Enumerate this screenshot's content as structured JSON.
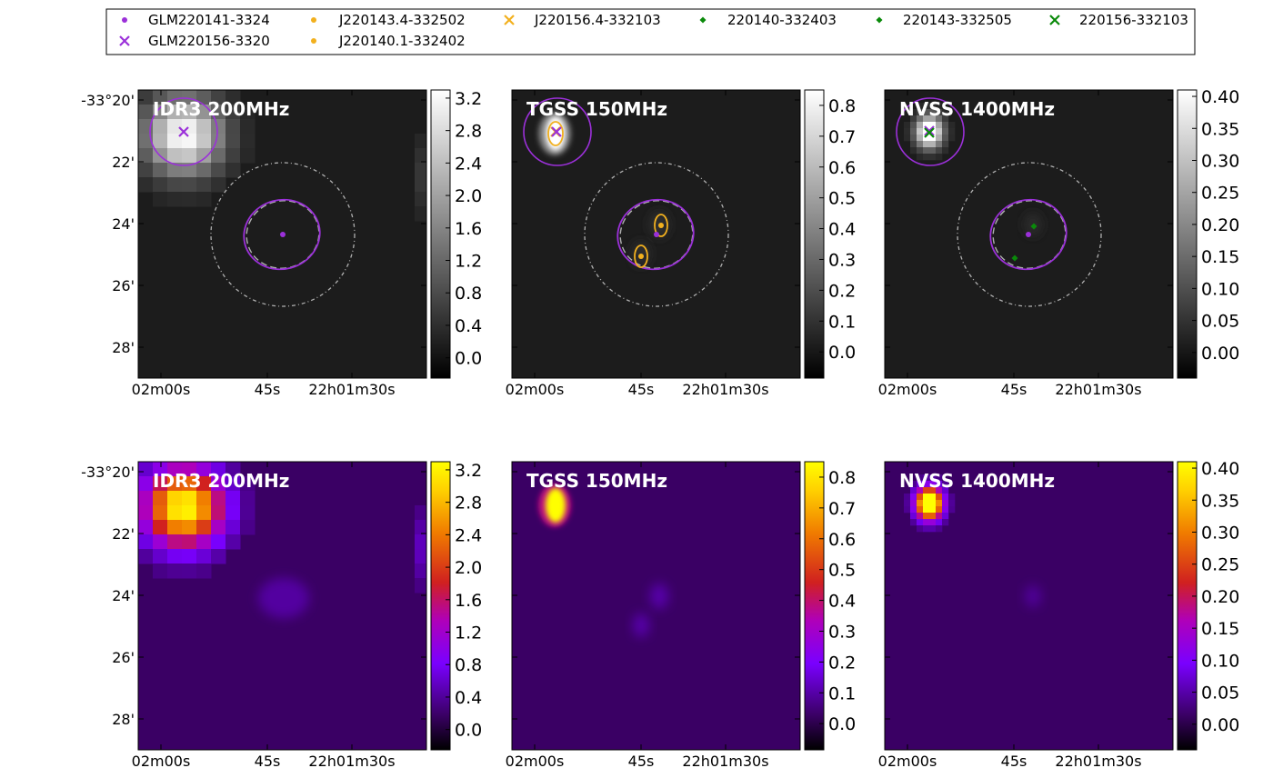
{
  "legend": {
    "entries": [
      {
        "label": "GLM220141-3324",
        "marker": "dot",
        "color": "#9b30d9"
      },
      {
        "label": "GLM220156-3320",
        "marker": "x",
        "color": "#9b30d9"
      },
      {
        "label": "J220143.4-332502",
        "marker": "dot",
        "color": "#f2b01e"
      },
      {
        "label": "J220140.1-332402",
        "marker": "dot",
        "color": "#f2b01e"
      },
      {
        "label": "J220156.4-332103",
        "marker": "x",
        "color": "#f2b01e"
      },
      {
        "label": "220140-332403",
        "marker": "diamond",
        "color": "#0a8a0a"
      },
      {
        "label": "220143-332505",
        "marker": "diamond",
        "color": "#0a8a0a"
      },
      {
        "label": "220156-332103",
        "marker": "x",
        "color": "#0a8a0a"
      }
    ]
  },
  "chart_data": [
    {
      "type": "heatmap",
      "title": "IDR3 200MHz",
      "colormap": "gray",
      "x_ticks": [
        "02m00s",
        "45s",
        "22h01m30s"
      ],
      "y_ticks": [
        "-33°20'",
        "22'",
        "24'",
        "26'",
        "28'"
      ],
      "colorbar": {
        "ticks": [
          "0.0",
          "0.4",
          "0.8",
          "1.2",
          "1.6",
          "2.0",
          "2.4",
          "2.8",
          "3.2"
        ],
        "range": [
          -0.25,
          3.3
        ]
      },
      "overlays": true
    },
    {
      "type": "heatmap",
      "title": "TGSS 150MHz",
      "colormap": "gray",
      "x_ticks": [
        "02m00s",
        "45s",
        "22h01m30s"
      ],
      "y_ticks": [],
      "colorbar": {
        "ticks": [
          "0.0",
          "0.1",
          "0.2",
          "0.3",
          "0.4",
          "0.5",
          "0.6",
          "0.7",
          "0.8"
        ],
        "range": [
          -0.085,
          0.85
        ]
      },
      "overlays": true
    },
    {
      "type": "heatmap",
      "title": "NVSS 1400MHz",
      "colormap": "gray",
      "x_ticks": [
        "02m00s",
        "45s",
        "22h01m30s"
      ],
      "y_ticks": [],
      "colorbar": {
        "ticks": [
          "0.00",
          "0.05",
          "0.10",
          "0.15",
          "0.20",
          "0.25",
          "0.30",
          "0.35",
          "0.40"
        ],
        "range": [
          -0.04,
          0.41
        ]
      },
      "overlays": true
    },
    {
      "type": "heatmap",
      "title": "IDR3 200MHz",
      "colormap": "gnuplot",
      "x_ticks": [
        "02m00s",
        "45s",
        "22h01m30s"
      ],
      "y_ticks": [
        "-33°20'",
        "22'",
        "24'",
        "26'",
        "28'"
      ],
      "colorbar": {
        "ticks": [
          "0.0",
          "0.4",
          "0.8",
          "1.2",
          "1.6",
          "2.0",
          "2.4",
          "2.8",
          "3.2"
        ],
        "range": [
          -0.25,
          3.3
        ]
      },
      "overlays": false
    },
    {
      "type": "heatmap",
      "title": "TGSS 150MHz",
      "colormap": "gnuplot",
      "x_ticks": [
        "02m00s",
        "45s",
        "22h01m30s"
      ],
      "y_ticks": [],
      "colorbar": {
        "ticks": [
          "0.0",
          "0.1",
          "0.2",
          "0.3",
          "0.4",
          "0.5",
          "0.6",
          "0.7",
          "0.8"
        ],
        "range": [
          -0.085,
          0.85
        ]
      },
      "overlays": false
    },
    {
      "type": "heatmap",
      "title": "NVSS 1400MHz",
      "colormap": "gnuplot",
      "x_ticks": [
        "02m00s",
        "45s",
        "22h01m30s"
      ],
      "y_ticks": [],
      "colorbar": {
        "ticks": [
          "0.00",
          "0.05",
          "0.10",
          "0.15",
          "0.20",
          "0.25",
          "0.30",
          "0.35",
          "0.40"
        ],
        "range": [
          -0.04,
          0.41
        ]
      },
      "overlays": false
    }
  ]
}
